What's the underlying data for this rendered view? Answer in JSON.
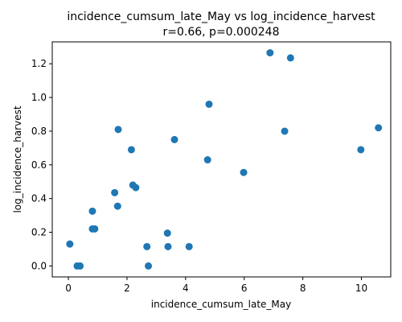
{
  "chart_data": {
    "type": "scatter",
    "title": "incidence_cumsum_late_May vs log_incidence_harvest",
    "subtitle": "r=0.66, p=0.000248",
    "xlabel": "incidence_cumsum_late_May",
    "ylabel": "log_incidence_harvest",
    "xlim": [
      -0.55,
      11.0
    ],
    "ylim": [
      -0.065,
      1.33
    ],
    "xticks": [
      0,
      2,
      4,
      6,
      8,
      10
    ],
    "yticks": [
      0.0,
      0.2,
      0.4,
      0.6,
      0.8,
      1.0,
      1.2
    ],
    "xtick_labels": [
      "0",
      "2",
      "4",
      "6",
      "8",
      "10"
    ],
    "ytick_labels": [
      "0.0",
      "0.2",
      "0.4",
      "0.6",
      "0.8",
      "1.0",
      "1.2"
    ],
    "grid": false,
    "color": "#1f77b4",
    "points": [
      {
        "x": 0.05,
        "y": 0.13
      },
      {
        "x": 0.3,
        "y": 0.0
      },
      {
        "x": 0.4,
        "y": 0.0
      },
      {
        "x": 0.82,
        "y": 0.325
      },
      {
        "x": 0.82,
        "y": 0.22
      },
      {
        "x": 0.9,
        "y": 0.22
      },
      {
        "x": 1.58,
        "y": 0.435
      },
      {
        "x": 1.68,
        "y": 0.355
      },
      {
        "x": 1.7,
        "y": 0.81
      },
      {
        "x": 2.15,
        "y": 0.69
      },
      {
        "x": 2.2,
        "y": 0.48
      },
      {
        "x": 2.3,
        "y": 0.465
      },
      {
        "x": 2.68,
        "y": 0.115
      },
      {
        "x": 2.73,
        "y": 0.0
      },
      {
        "x": 3.38,
        "y": 0.195
      },
      {
        "x": 3.4,
        "y": 0.115
      },
      {
        "x": 3.62,
        "y": 0.75
      },
      {
        "x": 4.12,
        "y": 0.115
      },
      {
        "x": 4.75,
        "y": 0.63
      },
      {
        "x": 4.8,
        "y": 0.96
      },
      {
        "x": 5.98,
        "y": 0.555
      },
      {
        "x": 6.88,
        "y": 1.265
      },
      {
        "x": 7.38,
        "y": 0.8
      },
      {
        "x": 7.58,
        "y": 1.235
      },
      {
        "x": 9.98,
        "y": 0.69
      },
      {
        "x": 10.58,
        "y": 0.82
      }
    ]
  }
}
